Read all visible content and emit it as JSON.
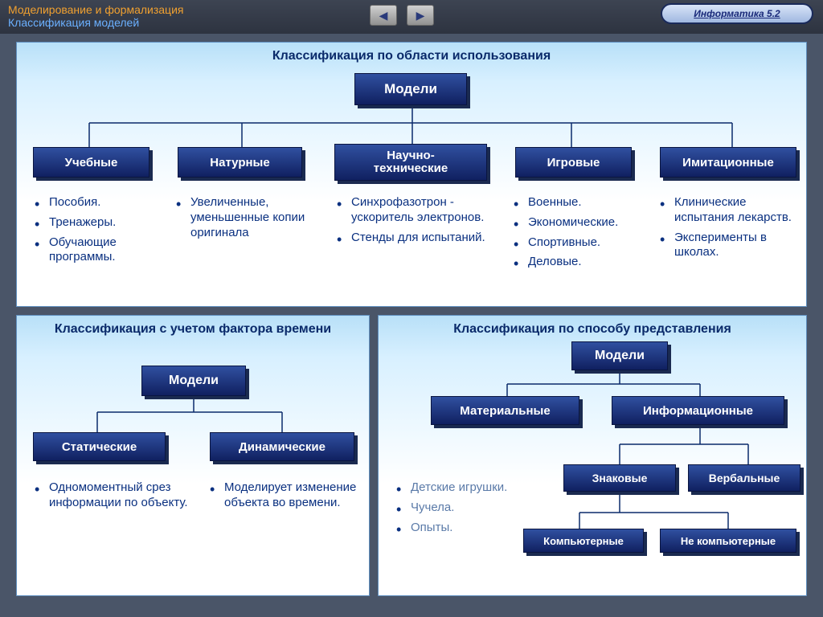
{
  "header": {
    "title1": "Моделирование и формализация",
    "title2": "Классификация моделей",
    "badge": "Информатика   5.2"
  },
  "colors": {
    "node_bg_top": "#3050a0",
    "node_bg_bottom": "#102060",
    "node_shadow": "#1a2a50",
    "panel_border": "#6090c0",
    "line": "#0a2a6a",
    "text_title": "#0a2a6a",
    "text_list": "#0a3080",
    "header_bg": "#2d3340"
  },
  "panel1": {
    "title": "Классификация по области использования",
    "root": "Модели",
    "children": [
      {
        "label": "Учебные",
        "items": [
          "Пособия.",
          "Тренажеры.",
          "Обучающие программы."
        ]
      },
      {
        "label": "Натурные",
        "items": [
          "Увеличенные, уменьшенные копии оригинала"
        ]
      },
      {
        "label": "Научно-\nтехнические",
        "items": [
          "Синхрофазотрон - ускоритель электронов.",
          "Стенды для испытаний."
        ]
      },
      {
        "label": "Игровые",
        "items": [
          "Военные.",
          "Экономические.",
          "Спортивные.",
          "Деловые."
        ]
      },
      {
        "label": "Имитационные",
        "items": [
          "Клинические испытания лекарств.",
          "Эксперименты в школах."
        ]
      }
    ]
  },
  "panel2": {
    "title": "Классификация с учетом фактора времени",
    "root": "Модели",
    "children": [
      {
        "label": "Статические",
        "items": [
          "Одномоментный срез информации по объекту."
        ]
      },
      {
        "label": "Динамические",
        "items": [
          "Моделирует изменение объекта во времени."
        ]
      }
    ]
  },
  "panel3": {
    "title": "Классификация по способу представления",
    "root": "Модели",
    "l2": [
      {
        "label": "Материальные",
        "items": [
          "Детские игрушки.",
          "Чучела.",
          "Опыты."
        ]
      },
      {
        "label": "Информационные"
      }
    ],
    "l3": [
      {
        "label": "Знаковые"
      },
      {
        "label": "Вербальные"
      }
    ],
    "l4": [
      {
        "label": "Компьютерные"
      },
      {
        "label": "Не компьютерные"
      }
    ]
  }
}
